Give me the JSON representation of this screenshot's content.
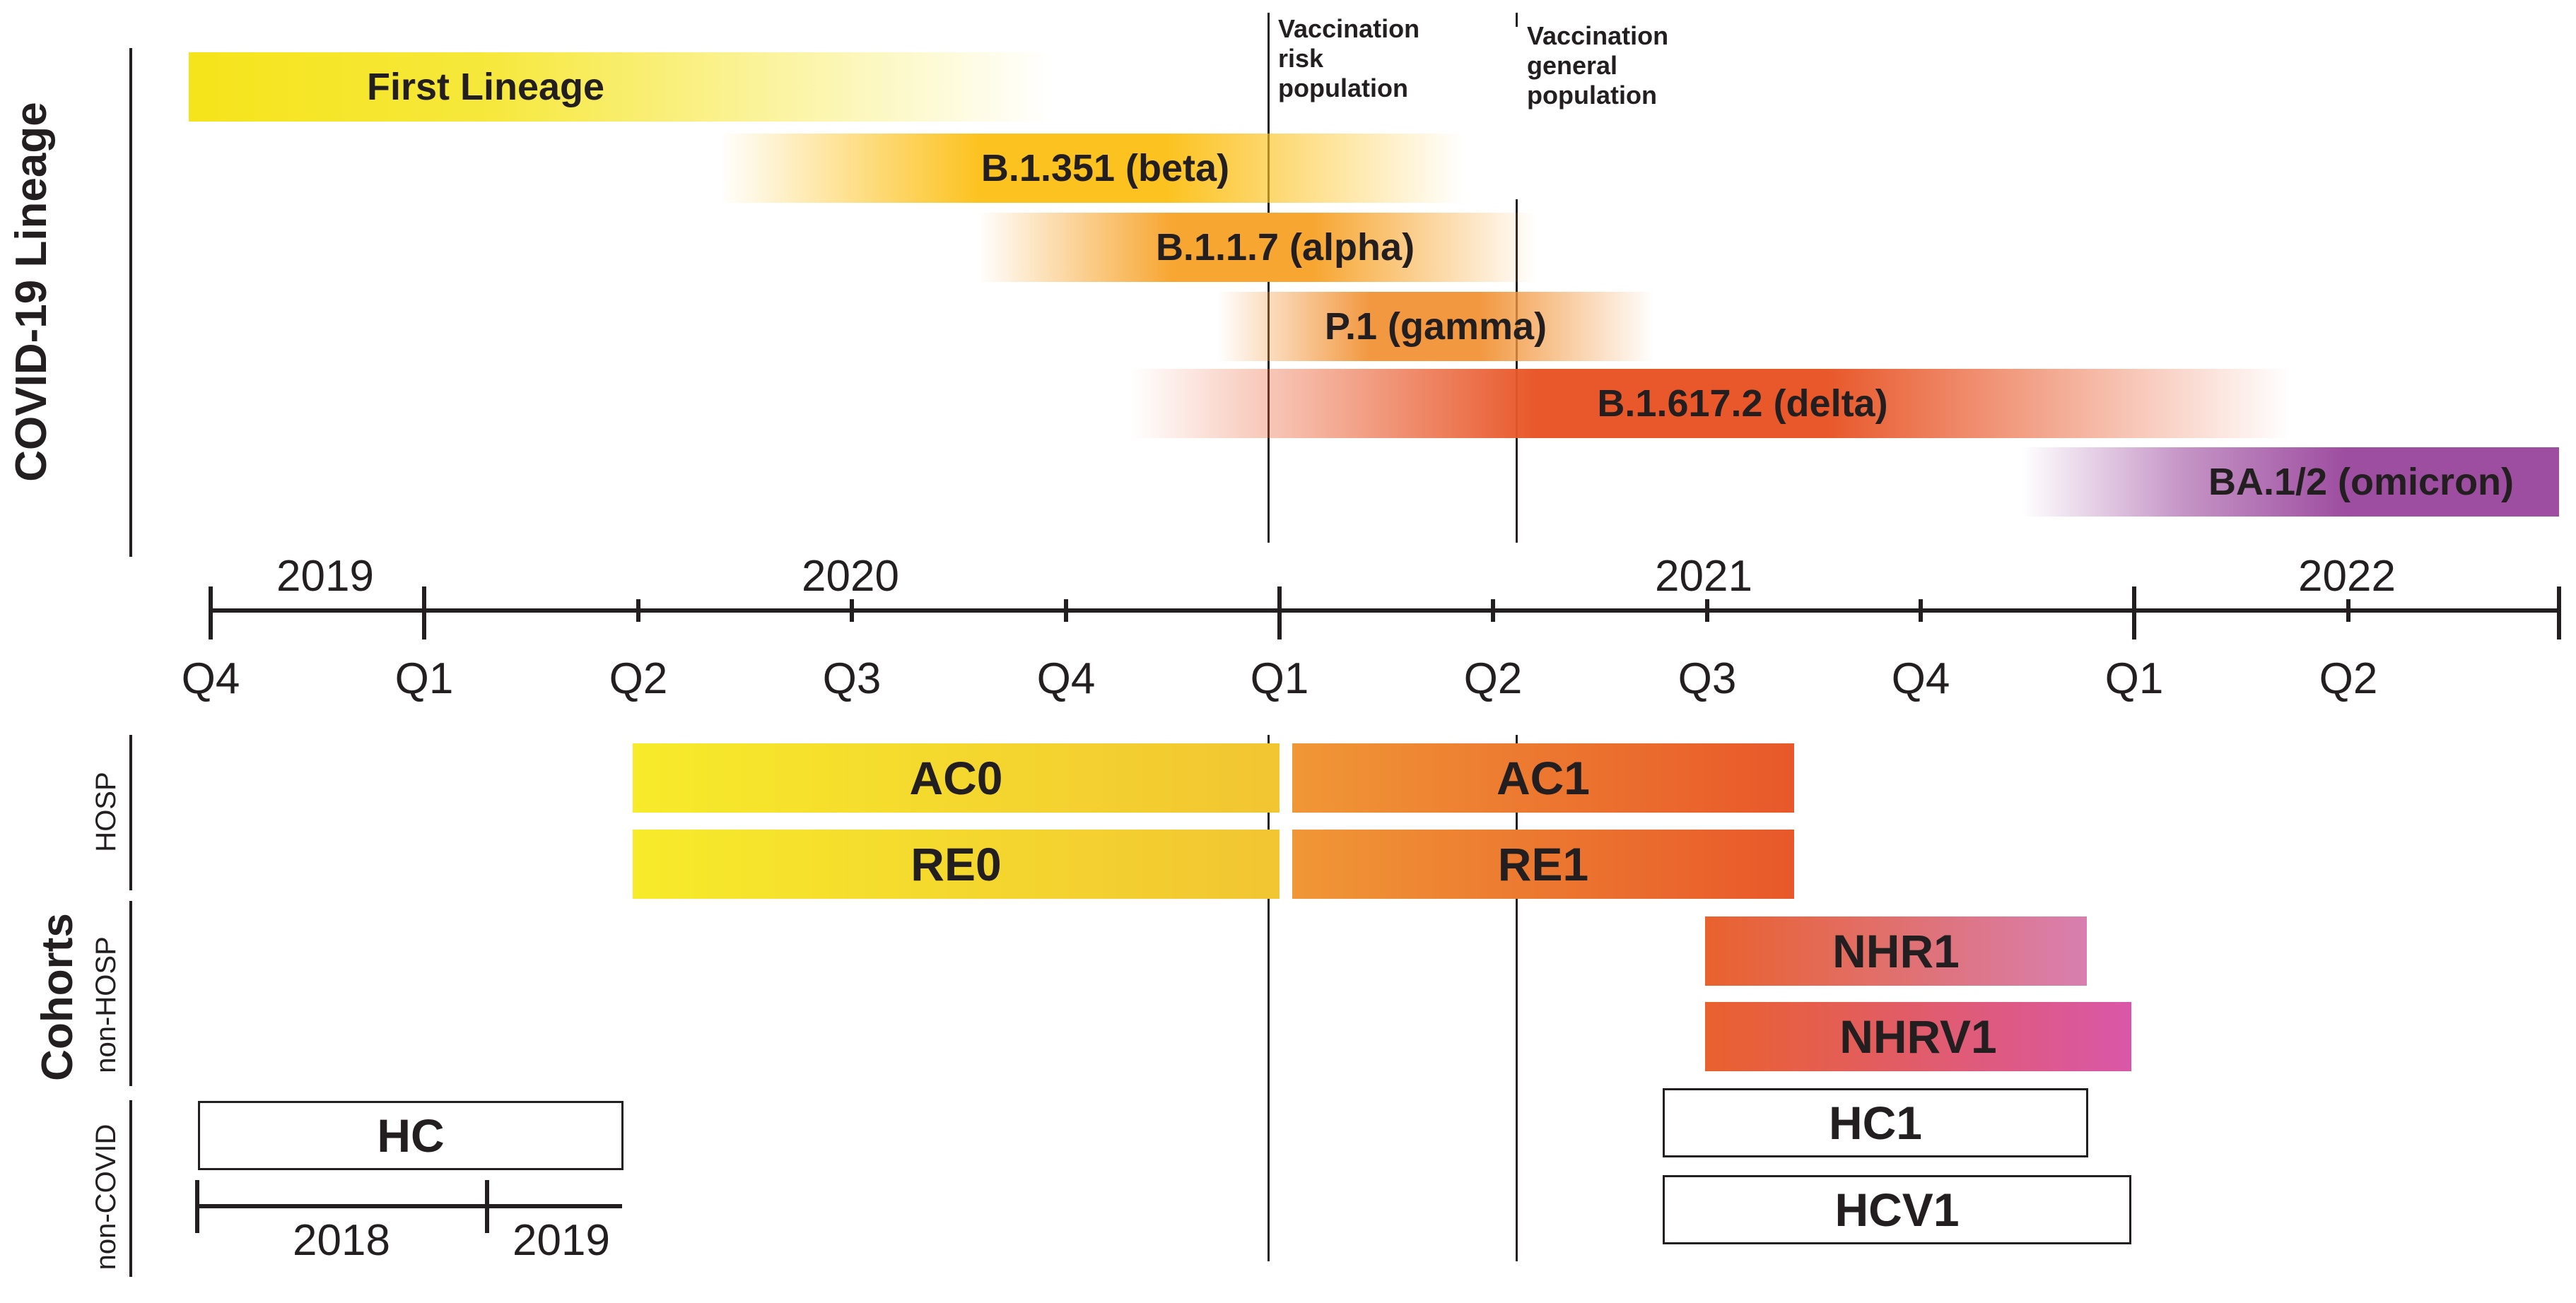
{
  "section_labels": {
    "lineage": "COVID-19 Lineage",
    "cohorts": "Cohorts",
    "hosp": "HOSP",
    "non_hosp": "non-HOSP",
    "non_covid": "non-COVID"
  },
  "annotations": {
    "vacc_risk": [
      "Vaccination",
      "risk",
      "population"
    ],
    "vacc_general": [
      "Vaccination",
      "general",
      "population"
    ]
  },
  "timeline": {
    "years": [
      "2019",
      "2020",
      "2021",
      "2022"
    ],
    "quarters": [
      "Q4",
      "Q1",
      "Q2",
      "Q3",
      "Q4",
      "Q1",
      "Q2",
      "Q3",
      "Q4",
      "Q1",
      "Q2"
    ]
  },
  "lineages": [
    {
      "label": "First Lineage",
      "color": "#f5e41a",
      "fade": "right"
    },
    {
      "label": "B.1.351 (beta)",
      "color": "#fcc21f",
      "fade": "both"
    },
    {
      "label": "B.1.1.7 (alpha)",
      "color": "#f7a631",
      "fade": "both"
    },
    {
      "label": "P.1 (gamma)",
      "color": "#f29840",
      "fade": "both"
    },
    {
      "label": "B.1.617.2 (delta)",
      "color": "#e8582a",
      "fade": "both"
    },
    {
      "label": "BA.1/2 (omicron)",
      "color": "#9e4ea0",
      "fade": "left"
    }
  ],
  "cohorts": {
    "hosp": [
      {
        "label": "AC0",
        "colors": [
          "#f7eb2a",
          "#f2c532"
        ]
      },
      {
        "label": "AC1",
        "colors": [
          "#f09736",
          "#e8582a"
        ]
      },
      {
        "label": "RE0",
        "colors": [
          "#f7eb2a",
          "#f2c532"
        ]
      },
      {
        "label": "RE1",
        "colors": [
          "#f09736",
          "#e8582a"
        ]
      }
    ],
    "non_hosp": [
      {
        "label": "NHR1",
        "colors": [
          "#e9612d",
          "#d87fb0"
        ]
      },
      {
        "label": "NHRV1",
        "colors": [
          "#e9612d",
          "#d957a8"
        ]
      }
    ],
    "non_covid": [
      {
        "label": "HC"
      },
      {
        "label": "HC1"
      },
      {
        "label": "HCV1"
      }
    ],
    "hc_timeline_years": [
      "2018",
      "2019"
    ]
  }
}
